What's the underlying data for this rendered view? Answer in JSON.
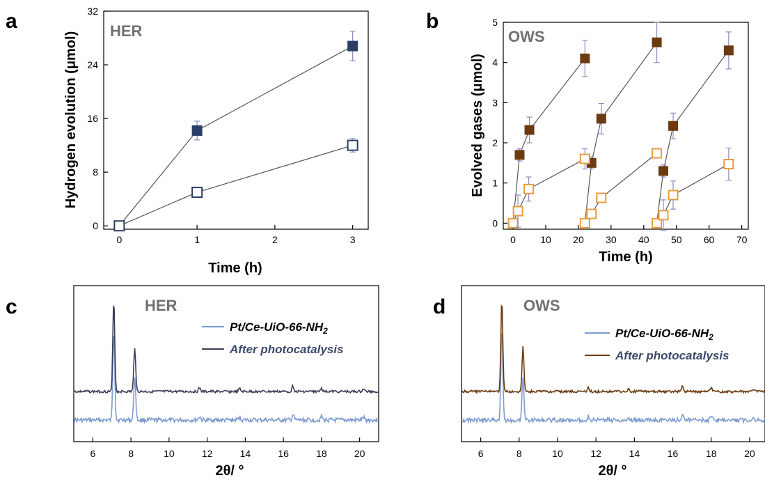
{
  "panel_labels": [
    "a",
    "b",
    "c",
    "d"
  ],
  "colors": {
    "navy": "#2b3f66",
    "dark_brown": "#6b3a10",
    "orange": "#e89a3c",
    "light_blue": "#7c9bd0",
    "dark_gray_line": "#3a3f58",
    "error": "#8c8cc0",
    "legend_text_dark": "#3c4a6b"
  },
  "chart_data": [
    {
      "type": "line",
      "panel": "a",
      "inset_label": "HER",
      "xlabel": "Time (h)",
      "ylabel": "Hydrogen evolution (μmol)",
      "xlim": [
        -0.2,
        3.2
      ],
      "ylim": [
        -0.5,
        32
      ],
      "xticks": [
        0,
        1,
        2,
        3
      ],
      "yticks": [
        0,
        8,
        16,
        24,
        32
      ],
      "series": [
        {
          "name": "",
          "marker": "filled-square",
          "x": [
            0,
            1,
            3
          ],
          "y": [
            0,
            14.2,
            26.8
          ],
          "yerr": [
            0,
            1.4,
            2.2
          ]
        },
        {
          "name": "",
          "marker": "open-square",
          "x": [
            0,
            1,
            3
          ],
          "y": [
            0,
            5.0,
            12.0
          ],
          "yerr": [
            0,
            0.3,
            1.0
          ]
        }
      ]
    },
    {
      "type": "line",
      "panel": "b",
      "inset_label": "OWS",
      "xlabel": "Time (h)",
      "ylabel": "Evolved gases (μmol)",
      "xlim": [
        -3,
        72
      ],
      "ylim": [
        -0.15,
        5
      ],
      "xticks": [
        0,
        10,
        20,
        30,
        40,
        50,
        60,
        70
      ],
      "yticks": [
        0,
        1,
        2,
        3,
        4,
        5
      ],
      "series": [
        {
          "name": "",
          "marker": "filled-square",
          "x": [
            0,
            2,
            5,
            22
          ],
          "y": [
            0,
            1.7,
            2.32,
            4.1
          ],
          "yerr": [
            0,
            0.15,
            0.32,
            0.45
          ]
        },
        {
          "name": "",
          "marker": "filled-square",
          "x": [
            22,
            24,
            27,
            44
          ],
          "y": [
            0,
            1.5,
            2.6,
            4.5
          ],
          "yerr": [
            0,
            0.15,
            0.38,
            0.5
          ]
        },
        {
          "name": "",
          "marker": "filled-square",
          "x": [
            44,
            46,
            49,
            66
          ],
          "y": [
            0,
            1.3,
            2.42,
            4.3
          ],
          "yerr": [
            0,
            0.15,
            0.32,
            0.46
          ]
        },
        {
          "name": "",
          "marker": "open-square",
          "x": [
            0,
            1.5,
            4.8,
            22
          ],
          "y": [
            0,
            0.3,
            0.85,
            1.6
          ],
          "yerr": [
            0,
            0.4,
            0.3,
            0.25
          ]
        },
        {
          "name": "",
          "marker": "open-square",
          "x": [
            22,
            24,
            27,
            44
          ],
          "y": [
            0,
            0.23,
            0.63,
            1.74
          ],
          "yerr": [
            0,
            0.1,
            0.08,
            0.08
          ]
        },
        {
          "name": "",
          "marker": "open-square",
          "x": [
            44,
            46,
            49,
            66
          ],
          "y": [
            0,
            0.2,
            0.7,
            1.47
          ],
          "yerr": [
            0,
            0.38,
            0.35,
            0.4
          ]
        }
      ]
    },
    {
      "type": "line",
      "panel": "c",
      "inset_label": "HER",
      "xlabel": "2θ/ °",
      "xlim": [
        5,
        21
      ],
      "xticks": [
        6,
        8,
        10,
        12,
        14,
        16,
        18,
        20
      ],
      "legend": [
        "Pt/Ce-UiO-66-NH",
        "After photocatalysis"
      ],
      "legend_sub": [
        "2",
        ""
      ],
      "series_peaks": [
        [
          7.1,
          1.0
        ],
        [
          8.2,
          0.48
        ],
        [
          11.6,
          0.04
        ],
        [
          13.7,
          0.03
        ],
        [
          16.5,
          0.06
        ],
        [
          18.0,
          0.04
        ],
        [
          20.2,
          0.03
        ]
      ]
    },
    {
      "type": "line",
      "panel": "d",
      "inset_label": "OWS",
      "xlabel": "2θ/ °",
      "xlim": [
        5,
        20.8
      ],
      "xticks": [
        6,
        8,
        10,
        12,
        14,
        16,
        18,
        20
      ],
      "legend": [
        "Pt/Ce-UiO-66-NH",
        "After photocatalysis"
      ],
      "legend_sub": [
        "2",
        ""
      ],
      "series_peaks": [
        [
          7.1,
          1.0
        ],
        [
          8.2,
          0.48
        ],
        [
          11.6,
          0.04
        ],
        [
          13.7,
          0.03
        ],
        [
          16.5,
          0.06
        ],
        [
          18.0,
          0.04
        ],
        [
          20.2,
          0.03
        ]
      ]
    }
  ]
}
